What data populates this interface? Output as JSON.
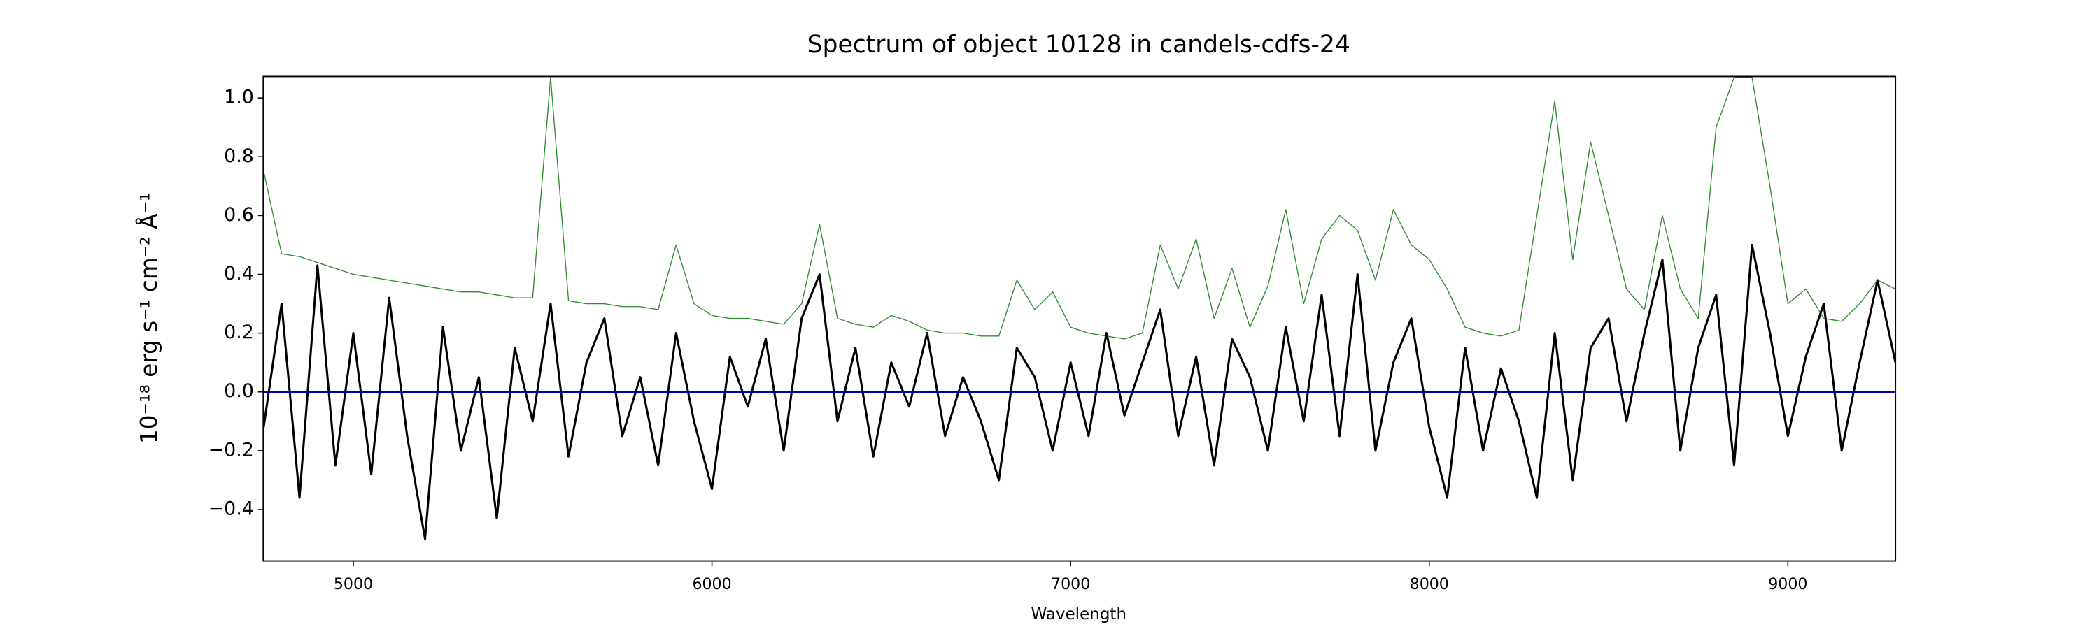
{
  "chart_data": {
    "type": "line",
    "title": "Spectrum of object 10128 in candels-cdfs-24",
    "xlabel": "Wavelength",
    "ylabel": "10⁻¹⁸ erg s⁻¹ cm⁻² Å⁻¹",
    "x": [
      4750,
      4800,
      4850,
      4900,
      4950,
      5000,
      5050,
      5100,
      5150,
      5200,
      5250,
      5300,
      5350,
      5400,
      5450,
      5500,
      5550,
      5600,
      5650,
      5700,
      5750,
      5800,
      5850,
      5900,
      5950,
      6000,
      6050,
      6100,
      6150,
      6200,
      6250,
      6300,
      6350,
      6400,
      6450,
      6500,
      6550,
      6600,
      6650,
      6700,
      6750,
      6800,
      6850,
      6900,
      6950,
      7000,
      7050,
      7100,
      7150,
      7200,
      7250,
      7300,
      7350,
      7400,
      7450,
      7500,
      7550,
      7600,
      7650,
      7700,
      7750,
      7800,
      7850,
      7900,
      7950,
      8000,
      8050,
      8100,
      8150,
      8200,
      8250,
      8300,
      8350,
      8400,
      8450,
      8500,
      8550,
      8600,
      8650,
      8700,
      8750,
      8800,
      8850,
      8900,
      8950,
      9000,
      9050,
      9100,
      9150,
      9200,
      9250,
      9300
    ],
    "series": [
      {
        "color": "#2e8b2e",
        "width": 0.7,
        "values": [
          0.75,
          0.47,
          0.46,
          0.44,
          0.42,
          0.4,
          0.39,
          0.38,
          0.37,
          0.36,
          0.35,
          0.34,
          0.34,
          0.33,
          0.32,
          0.32,
          1.07,
          0.31,
          0.3,
          0.3,
          0.29,
          0.29,
          0.28,
          0.5,
          0.3,
          0.26,
          0.25,
          0.25,
          0.24,
          0.23,
          0.3,
          0.57,
          0.25,
          0.23,
          0.22,
          0.26,
          0.24,
          0.21,
          0.2,
          0.2,
          0.19,
          0.19,
          0.38,
          0.28,
          0.34,
          0.22,
          0.2,
          0.19,
          0.18,
          0.2,
          0.5,
          0.35,
          0.52,
          0.25,
          0.42,
          0.22,
          0.36,
          0.62,
          0.3,
          0.52,
          0.6,
          0.55,
          0.38,
          0.62,
          0.5,
          0.45,
          0.35,
          0.22,
          0.2,
          0.19,
          0.21,
          0.6,
          0.99,
          0.45,
          0.85,
          0.6,
          0.35,
          0.28,
          0.6,
          0.35,
          0.25,
          0.9,
          1.07,
          1.07,
          0.7,
          0.3,
          0.35,
          0.25,
          0.24,
          0.3,
          0.38,
          0.35
        ]
      },
      {
        "color": "#000000",
        "width": 1.6,
        "values": [
          -0.12,
          0.3,
          -0.36,
          0.43,
          -0.25,
          0.2,
          -0.28,
          0.32,
          -0.15,
          -0.5,
          0.22,
          -0.2,
          0.05,
          -0.43,
          0.15,
          -0.1,
          0.3,
          -0.22,
          0.1,
          0.25,
          -0.15,
          0.05,
          -0.25,
          0.2,
          -0.1,
          -0.33,
          0.12,
          -0.05,
          0.18,
          -0.2,
          0.25,
          0.4,
          -0.1,
          0.15,
          -0.22,
          0.1,
          -0.05,
          0.2,
          -0.15,
          0.05,
          -0.1,
          -0.3,
          0.15,
          0.05,
          -0.2,
          0.1,
          -0.15,
          0.2,
          -0.08,
          0.1,
          0.28,
          -0.15,
          0.12,
          -0.25,
          0.18,
          0.05,
          -0.2,
          0.22,
          -0.1,
          0.33,
          -0.15,
          0.4,
          -0.2,
          0.1,
          0.25,
          -0.12,
          -0.36,
          0.15,
          -0.2,
          0.08,
          -0.1,
          -0.36,
          0.2,
          -0.3,
          0.15,
          0.25,
          -0.1,
          0.2,
          0.45,
          -0.2,
          0.15,
          0.33,
          -0.25,
          0.5,
          0.2,
          -0.15,
          0.12,
          0.3,
          -0.2,
          0.1,
          0.38,
          0.1
        ]
      }
    ],
    "hline": {
      "value": 0,
      "color": "#0000b0"
    },
    "xlim": [
      4749,
      9300
    ],
    "ylim": [
      -0.575,
      1.073
    ],
    "xticks": [
      5000,
      6000,
      7000,
      8000,
      9000
    ],
    "yticks": [
      {
        "value": -0.4,
        "label": "−0.4"
      },
      {
        "value": -0.2,
        "label": "−0.2"
      },
      {
        "value": 0,
        "label": "0.0"
      },
      0.2,
      0.4,
      0.6,
      0.8,
      {
        "value": 1,
        "label": "1.0"
      }
    ]
  }
}
